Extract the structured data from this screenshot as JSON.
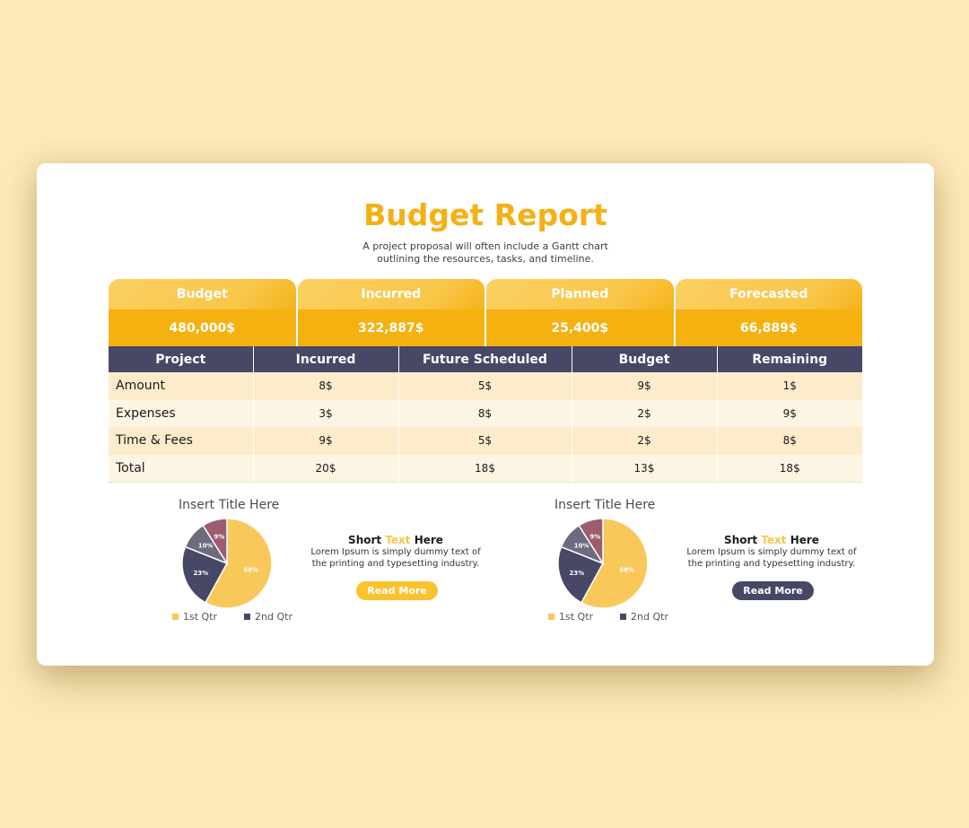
{
  "title": "Budget Report",
  "subtitle": "A project proposal will often include a Gantt chart outlining the resources, tasks, and timeline.",
  "summary_cards": [
    {
      "label": "Budget",
      "value": "480,000$"
    },
    {
      "label": "Incurred",
      "value": "322,887$"
    },
    {
      "label": "Planned",
      "value": "25,400$"
    },
    {
      "label": "Forecasted",
      "value": "66,889$"
    }
  ],
  "table": {
    "headers": [
      "Project",
      "Incurred",
      "Future Scheduled",
      "Budget",
      "Remaining"
    ],
    "rows": [
      [
        "Amount",
        "8$",
        "5$",
        "9$",
        "1$"
      ],
      [
        "Expenses",
        "3$",
        "8$",
        "2$",
        "9$"
      ],
      [
        "Time & Fees",
        "9$",
        "5$",
        "2$",
        "8$"
      ],
      [
        "Total",
        "20$",
        "18$",
        "13$",
        "18$"
      ]
    ]
  },
  "panels": [
    {
      "title": "Insert Title Here",
      "short_title_pre": "Short ",
      "short_title_accent": "Text",
      "short_title_post": " Here",
      "body": "Lorem Ipsum is simply dummy text of the printing and typesetting industry.",
      "button_label": "Read More",
      "button_color": "#f9c22e",
      "legend": [
        "1st Qtr",
        "2nd Qtr"
      ]
    },
    {
      "title": "Insert Title Here",
      "short_title_pre": "Short ",
      "short_title_accent": "Text",
      "short_title_post": " Here",
      "body": "Lorem Ipsum is simply dummy text of the printing and typesetting industry.",
      "button_label": "Read More",
      "button_color": "#474866",
      "legend": [
        "1st Qtr",
        "2nd Qtr"
      ]
    }
  ],
  "chart_data": [
    {
      "type": "pie",
      "slices": [
        {
          "label": "58%",
          "value": 58,
          "color": "#f9c85a"
        },
        {
          "label": "23%",
          "value": 23,
          "color": "#474866"
        },
        {
          "label": "10%",
          "value": 10,
          "color": "#6e6a80"
        },
        {
          "label": "9%",
          "value": 9,
          "color": "#9c5c6e"
        }
      ],
      "legend": [
        "1st Qtr",
        "2nd Qtr"
      ]
    },
    {
      "type": "pie",
      "slices": [
        {
          "label": "58%",
          "value": 58,
          "color": "#f9c85a"
        },
        {
          "label": "23%",
          "value": 23,
          "color": "#474866"
        },
        {
          "label": "10%",
          "value": 10,
          "color": "#6e6a80"
        },
        {
          "label": "9%",
          "value": 9,
          "color": "#9c5c6e"
        }
      ],
      "legend": [
        "1st Qtr",
        "2nd Qtr"
      ]
    }
  ],
  "colors": {
    "accent": "#f5b014",
    "navy": "#474866",
    "legend_1": "#f9c85a",
    "legend_2": "#474866"
  }
}
